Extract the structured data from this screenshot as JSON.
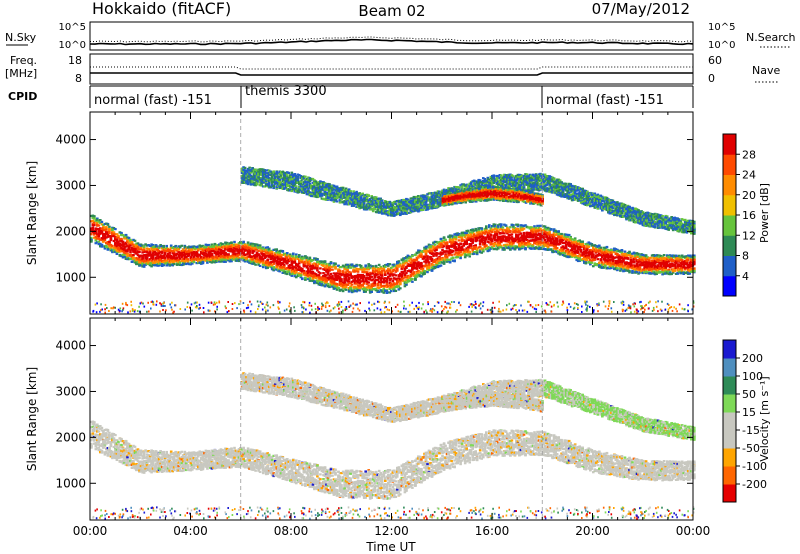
{
  "header": {
    "title_left": "Hokkaido (fitACF)",
    "title_center": "Beam 02",
    "title_right": "07/May/2012"
  },
  "strip_sky": {
    "left_label": "N.Sky",
    "left_ticks": [
      "10^5",
      "10^0"
    ],
    "right_ticks": [
      "10^5",
      "10^0"
    ],
    "right_label": "N.Search"
  },
  "strip_freq": {
    "left_label_1": "Freq.",
    "left_label_2": "[MHz]",
    "left_ticks": [
      "18",
      "8"
    ],
    "right_ticks": [
      "60",
      "0"
    ],
    "right_label": "Nave"
  },
  "cpid": {
    "label": "CPID",
    "segments": [
      {
        "name": "normal (fast) -151",
        "start": 0,
        "end": 6
      },
      {
        "name": "themis 3300",
        "start": 6,
        "end": 18
      },
      {
        "name": "normal (fast) -151",
        "start": 18,
        "end": 24
      }
    ]
  },
  "colors": {
    "power_scale": [
      "#0000ff",
      "#1f5fc8",
      "#2e8a55",
      "#66c43c",
      "#f0c000",
      "#ff8c00",
      "#ff4a00",
      "#e00000"
    ],
    "velocity_scale": [
      "#e60000",
      "#ff6600",
      "#ffa500",
      "#c8c8c0",
      "#c8c8c0",
      "#7ed957",
      "#2e8b57",
      "#4f8fbf",
      "#1a1ad0"
    ],
    "ground_grey": "#c8c8c0"
  },
  "chart_data": [
    {
      "type": "heatmap",
      "name": "power",
      "ylabel": "Slant Range [km]",
      "yticks": [
        1000,
        2000,
        3000,
        4000
      ],
      "ylim": [
        200,
        4600
      ],
      "xlim": [
        0,
        24
      ],
      "colorbar": {
        "label": "Power [dB]",
        "ticks": [
          "4",
          "8",
          "12",
          "16",
          "20",
          "24",
          "28"
        ],
        "range": [
          0,
          32
        ]
      },
      "bands": [
        {
          "x": [
            0,
            2,
            4,
            6,
            8,
            10,
            12,
            14,
            16,
            18,
            20,
            22,
            24
          ],
          "center": [
            2100,
            1500,
            1500,
            1600,
            1300,
            1000,
            1000,
            1600,
            1900,
            1900,
            1500,
            1300,
            1300
          ],
          "width": [
            300,
            250,
            200,
            220,
            250,
            300,
            320,
            300,
            280,
            260,
            240,
            220,
            200
          ],
          "level": "high"
        },
        {
          "x": [
            6,
            8,
            10,
            12,
            14,
            16,
            18
          ],
          "center": [
            3250,
            3100,
            2800,
            2500,
            2750,
            3050,
            3100
          ],
          "width": [
            180,
            200,
            180,
            160,
            180,
            200,
            180
          ],
          "level": "low"
        },
        {
          "x": [
            14,
            15,
            16,
            17,
            18
          ],
          "center": [
            2700,
            2800,
            2850,
            2800,
            2700
          ],
          "width": [
            120,
            140,
            150,
            140,
            120
          ],
          "level": "high"
        },
        {
          "x": [
            18,
            20,
            22,
            24
          ],
          "center": [
            3100,
            2700,
            2300,
            2100
          ],
          "width": [
            180,
            160,
            150,
            140
          ],
          "level": "low"
        }
      ]
    },
    {
      "type": "heatmap",
      "name": "velocity",
      "ylabel": "Slant Range [km]",
      "yticks": [
        1000,
        2000,
        3000,
        4000
      ],
      "ylim": [
        200,
        4600
      ],
      "xlim": [
        0,
        24
      ],
      "xticks": [
        "00:00",
        "04:00",
        "08:00",
        "12:00",
        "16:00",
        "20:00",
        "00:00"
      ],
      "xlabel": "Time UT",
      "colorbar": {
        "label": "Velocity [m s⁻¹]",
        "ticks": [
          "-200",
          "-100",
          "-50",
          "-15",
          "15",
          "50",
          "100",
          "200"
        ],
        "range": [
          -250,
          250
        ]
      }
    }
  ]
}
